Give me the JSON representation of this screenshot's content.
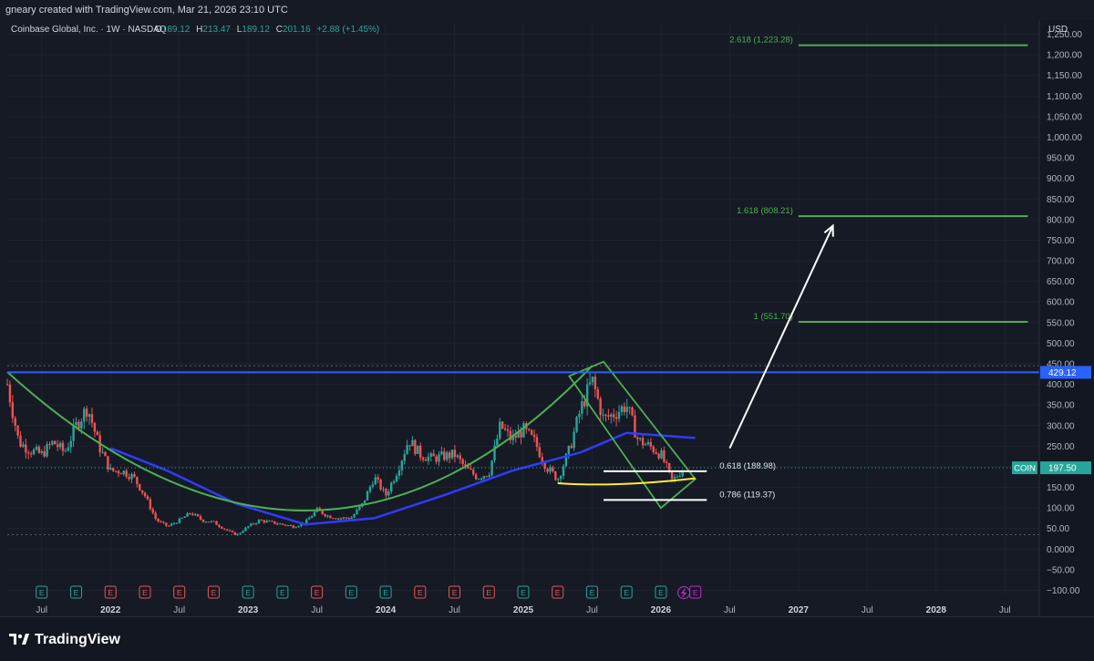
{
  "header": {
    "attribution": "gneary created with TradingView.com, Mar 21, 2026 23:10 UTC"
  },
  "legend": {
    "name": "Coinbase Global, Inc. · 1W · NASDAQ",
    "o_label": "O",
    "o": "189.12",
    "h_label": "H",
    "h": "213.47",
    "l_label": "L",
    "l": "189.12",
    "c_label": "C",
    "c": "201.16",
    "change": "+2.88 (+1.45%)"
  },
  "axis": {
    "currency": "USD",
    "y_ticks": [
      "1,250.00",
      "1,200.00",
      "1,150.00",
      "1,100.00",
      "1,050.00",
      "1,000.00",
      "950.00",
      "900.00",
      "850.00",
      "800.00",
      "750.00",
      "700.00",
      "650.00",
      "600.00",
      "550.00",
      "500.00",
      "450.00",
      "400.00",
      "350.00",
      "300.00",
      "250.00",
      "200.00",
      "150.00",
      "100.00",
      "50.00",
      "0.0000",
      "−50.00",
      "−100.00"
    ],
    "x_ticks": [
      {
        "label": "Jul",
        "bold": false
      },
      {
        "label": "2022",
        "bold": true
      },
      {
        "label": "Jul",
        "bold": false
      },
      {
        "label": "2023",
        "bold": true
      },
      {
        "label": "Jul",
        "bold": false
      },
      {
        "label": "2024",
        "bold": true
      },
      {
        "label": "Jul",
        "bold": false
      },
      {
        "label": "2025",
        "bold": true
      },
      {
        "label": "Jul",
        "bold": false
      },
      {
        "label": "2026",
        "bold": true
      },
      {
        "label": "Jul",
        "bold": false
      },
      {
        "label": "2027",
        "bold": true
      },
      {
        "label": "Jul",
        "bold": false
      },
      {
        "label": "2028",
        "bold": true
      },
      {
        "label": "Jul",
        "bold": false
      }
    ]
  },
  "price_labels": {
    "level_value": "429.12",
    "symbol": "COIN",
    "last_price": "197.50"
  },
  "fib_levels": [
    {
      "label": "2.618 (1,223.28)",
      "price": 1223.28
    },
    {
      "label": "1.618 (808.21)",
      "price": 808.21
    },
    {
      "label": "1 (551.70)",
      "price": 551.7
    },
    {
      "label": "0.618 (188.98)",
      "price": 188.98
    },
    {
      "label": "0.786 (119.37)",
      "price": 119.37
    }
  ],
  "earnings_markers": [
    "E",
    "E",
    "E",
    "E",
    "E",
    "E",
    "E",
    "E",
    "E",
    "E",
    "E",
    "E",
    "E",
    "E",
    "E",
    "E",
    "E",
    "E",
    "E",
    "E"
  ],
  "colors": {
    "up": "#26a69a",
    "down": "#ef5350",
    "ma": "#2f3cff",
    "cup": "#4caf50",
    "fib": "#4caf50",
    "level": "#2962ff",
    "support": "#ffeb3b",
    "badge": "#26a69a"
  },
  "footer": {
    "brand": "TradingView"
  },
  "chart_data": {
    "type": "candlestick",
    "symbol": "COIN",
    "interval": "1W",
    "ylim": [
      -110,
      1280
    ],
    "x_range": [
      "2021-04",
      "2028-10"
    ],
    "ohlc_anchor_points": [
      {
        "date": "2021-04",
        "price": 400
      },
      {
        "date": "2021-05",
        "price": 260
      },
      {
        "date": "2021-06",
        "price": 240
      },
      {
        "date": "2021-07",
        "price": 230
      },
      {
        "date": "2021-08",
        "price": 260
      },
      {
        "date": "2021-09",
        "price": 235
      },
      {
        "date": "2021-10",
        "price": 300
      },
      {
        "date": "2021-11",
        "price": 345
      },
      {
        "date": "2021-12",
        "price": 250
      },
      {
        "date": "2022-01",
        "price": 190
      },
      {
        "date": "2022-02",
        "price": 190
      },
      {
        "date": "2022-03",
        "price": 175
      },
      {
        "date": "2022-04",
        "price": 130
      },
      {
        "date": "2022-05",
        "price": 70
      },
      {
        "date": "2022-06",
        "price": 55
      },
      {
        "date": "2022-07",
        "price": 70
      },
      {
        "date": "2022-08",
        "price": 88
      },
      {
        "date": "2022-09",
        "price": 70
      },
      {
        "date": "2022-10",
        "price": 65
      },
      {
        "date": "2022-11",
        "price": 48
      },
      {
        "date": "2022-12",
        "price": 34
      },
      {
        "date": "2023-01",
        "price": 55
      },
      {
        "date": "2023-02",
        "price": 70
      },
      {
        "date": "2023-03",
        "price": 65
      },
      {
        "date": "2023-04",
        "price": 60
      },
      {
        "date": "2023-05",
        "price": 55
      },
      {
        "date": "2023-06",
        "price": 65
      },
      {
        "date": "2023-07",
        "price": 95
      },
      {
        "date": "2023-08",
        "price": 80
      },
      {
        "date": "2023-09",
        "price": 75
      },
      {
        "date": "2023-10",
        "price": 76
      },
      {
        "date": "2023-11",
        "price": 110
      },
      {
        "date": "2023-12",
        "price": 175
      },
      {
        "date": "2024-01",
        "price": 130
      },
      {
        "date": "2024-02",
        "price": 190
      },
      {
        "date": "2024-03",
        "price": 265
      },
      {
        "date": "2024-04",
        "price": 230
      },
      {
        "date": "2024-05",
        "price": 220
      },
      {
        "date": "2024-06",
        "price": 225
      },
      {
        "date": "2024-07",
        "price": 230
      },
      {
        "date": "2024-08",
        "price": 195
      },
      {
        "date": "2024-09",
        "price": 175
      },
      {
        "date": "2024-10",
        "price": 185
      },
      {
        "date": "2024-11",
        "price": 300
      },
      {
        "date": "2024-12",
        "price": 265
      },
      {
        "date": "2025-01",
        "price": 290
      },
      {
        "date": "2025-02",
        "price": 260
      },
      {
        "date": "2025-03",
        "price": 200
      },
      {
        "date": "2025-04",
        "price": 170
      },
      {
        "date": "2025-05",
        "price": 240
      },
      {
        "date": "2025-06",
        "price": 340
      },
      {
        "date": "2025-07",
        "price": 410
      },
      {
        "date": "2025-08",
        "price": 315
      },
      {
        "date": "2025-09",
        "price": 330
      },
      {
        "date": "2025-10",
        "price": 350
      },
      {
        "date": "2025-11",
        "price": 265
      },
      {
        "date": "2025-12",
        "price": 250
      },
      {
        "date": "2026-01",
        "price": 230
      },
      {
        "date": "2026-02",
        "price": 165
      },
      {
        "date": "2026-03",
        "price": 197.5
      }
    ],
    "moving_average": [
      {
        "date": "2022-01",
        "price": 245
      },
      {
        "date": "2022-06",
        "price": 190
      },
      {
        "date": "2022-12",
        "price": 110
      },
      {
        "date": "2023-06",
        "price": 60
      },
      {
        "date": "2023-12",
        "price": 75
      },
      {
        "date": "2024-06",
        "price": 130
      },
      {
        "date": "2024-12",
        "price": 190
      },
      {
        "date": "2025-06",
        "price": 235
      },
      {
        "date": "2025-10",
        "price": 282
      },
      {
        "date": "2026-04",
        "price": 270
      }
    ],
    "horizontal_level": 429.12,
    "support_line": 155,
    "last_price": 197.5,
    "fib_targets": [
      1223.28,
      808.21,
      551.7,
      188.98,
      119.37
    ]
  }
}
